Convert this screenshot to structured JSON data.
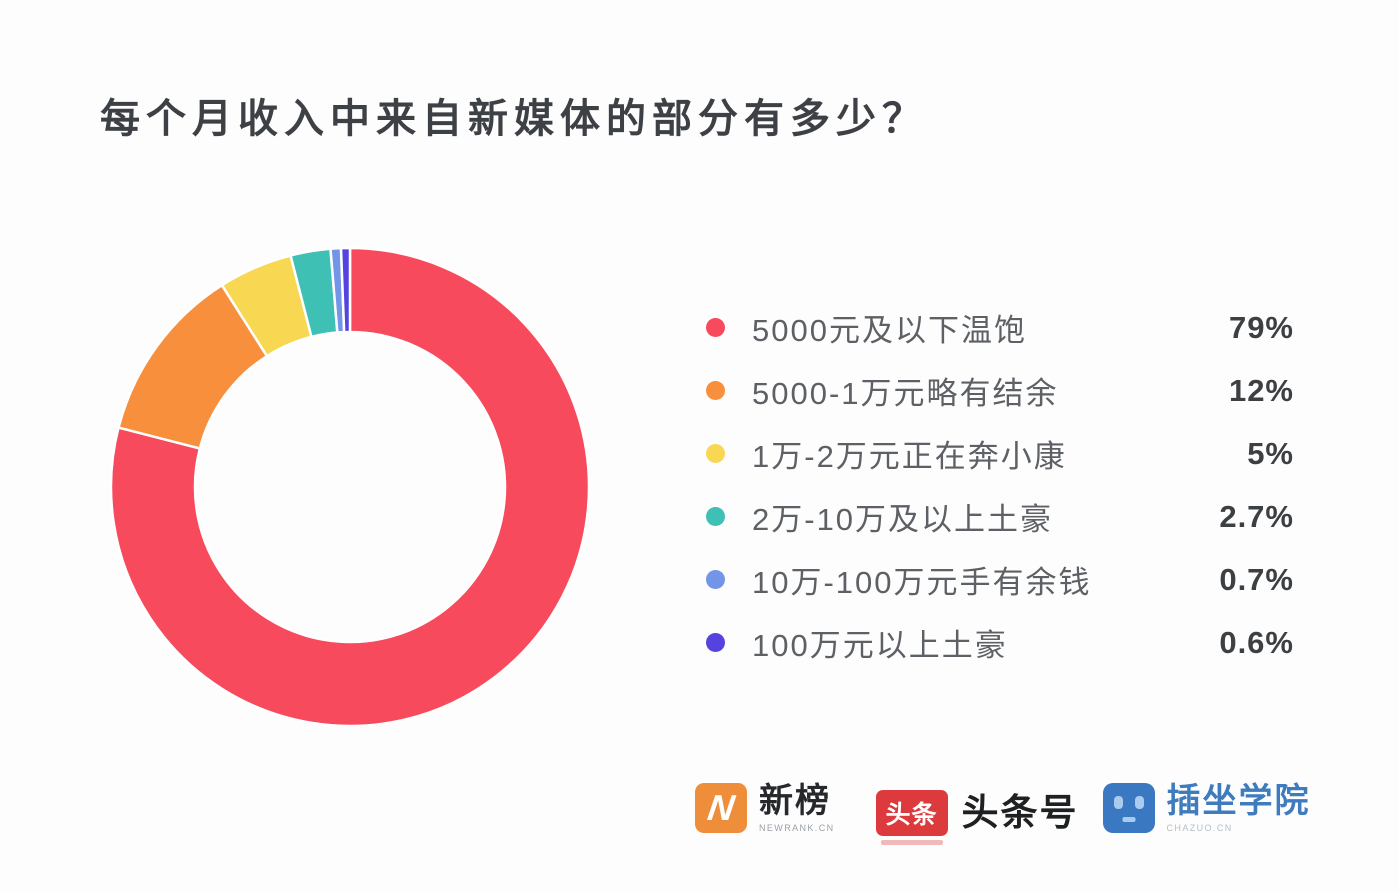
{
  "title": "每个月收入中来自新媒体的部分有多少？",
  "chart_data": {
    "type": "pie",
    "variant": "donut",
    "title": "每个月收入中来自新媒体的部分有多少？",
    "categories": [
      "5000元及以下温饱",
      "5000-1万元略有结余",
      "1万-2万元正在奔小康",
      "2万-10万及以上土豪",
      "10万-100万元手有余钱",
      "100万元以上土豪"
    ],
    "values": [
      79,
      12,
      5,
      2.7,
      0.7,
      0.6
    ],
    "value_labels": [
      "79%",
      "12%",
      "5%",
      "2.7%",
      "0.7%",
      "0.6%"
    ],
    "colors": [
      "#F74A5C",
      "#F78F3D",
      "#F8D852",
      "#3FC0B4",
      "#7295E8",
      "#5642DE"
    ],
    "start_angle_deg": 0,
    "direction": "clockwise",
    "donut_hole_ratio": 0.65,
    "legend_position": "right",
    "slice_gap_color": "#ffffff"
  },
  "footer": {
    "logos": [
      {
        "icon": "newrank-n",
        "title": "新榜",
        "subtitle": "NEWRANK.CN"
      },
      {
        "icon": "toutiao-badge",
        "badge_text": "头条",
        "title": "头条号"
      },
      {
        "icon": "chazuo-robot-face",
        "title": "插坐学院",
        "subtitle": "CHAZUO.CN"
      }
    ]
  }
}
